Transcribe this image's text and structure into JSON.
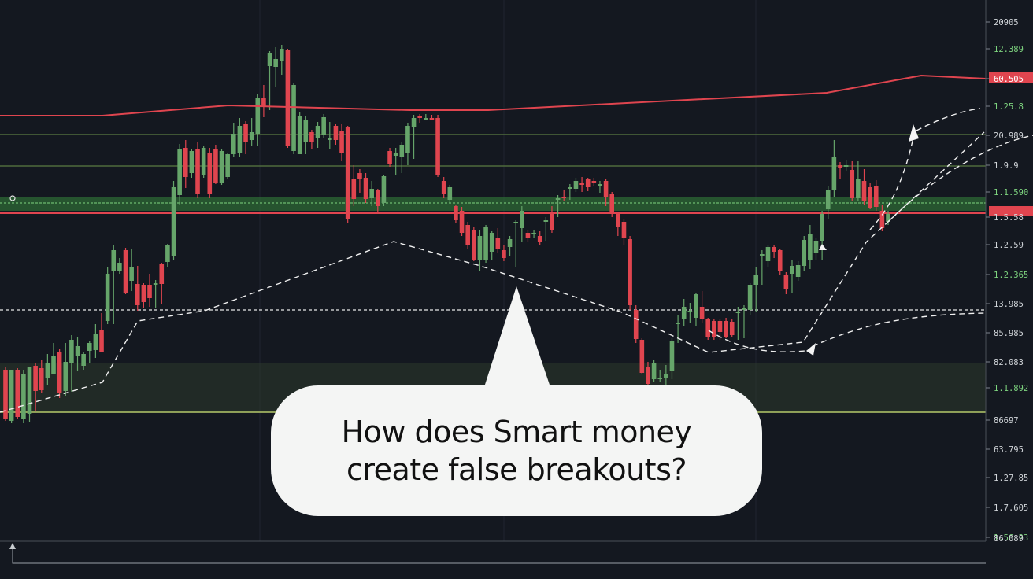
{
  "question": {
    "line1": "How does Smart money",
    "line2": "create false breakouts?"
  },
  "price_axis": {
    "labels": [
      "20905",
      "12.389",
      "60.505",
      "1.25.8",
      "20.989",
      "1.9.9",
      "1.1.590",
      "1.5.58",
      "1.2.59",
      "1.2.365",
      "13.985",
      "85.985",
      "82.083",
      "1.1.892",
      "86697",
      "63.795",
      "1.27.85",
      "1.7.605",
      "1.56.23",
      "1.36.95",
      "86.089"
    ]
  },
  "chart_data": {
    "type": "candlestick",
    "title": "",
    "xlabel": "",
    "ylabel": "",
    "candle_colors": {
      "up": "#66a56a",
      "down": "#e0454f"
    },
    "candles": [
      [
        "d",
        466,
        535,
        470,
        532
      ],
      [
        "u",
        520,
        538,
        470,
        535
      ],
      [
        "d",
        468,
        532,
        470,
        530
      ],
      [
        "u",
        470,
        538,
        475,
        532
      ],
      [
        "u",
        522,
        537,
        466,
        526
      ],
      [
        "d",
        462,
        522,
        465,
        497
      ],
      [
        "d",
        458,
        500,
        468,
        496
      ],
      [
        "u",
        450,
        490,
        462,
        481
      ],
      [
        "u",
        436,
        476,
        452,
        476
      ],
      [
        "d",
        444,
        506,
        447,
        500
      ],
      [
        "u",
        436,
        504,
        460,
        497
      ],
      [
        "u",
        426,
        498,
        432,
        462
      ],
      [
        "u",
        428,
        472,
        440,
        452
      ],
      [
        "u",
        448,
        470,
        450,
        465
      ],
      [
        "u",
        434,
        462,
        436,
        446
      ],
      [
        "u",
        412,
        455,
        425,
        445
      ],
      [
        "d",
        398,
        448,
        420,
        447
      ],
      [
        "u",
        340,
        412,
        348,
        408
      ],
      [
        "u",
        312,
        412,
        318,
        344
      ],
      [
        "u",
        328,
        348,
        334,
        344
      ],
      [
        "d",
        315,
        374,
        318,
        372
      ],
      [
        "u",
        316,
        370,
        340,
        357
      ],
      [
        "d",
        338,
        395,
        361,
        388
      ],
      [
        "d",
        360,
        392,
        362,
        384
      ],
      [
        "d",
        348,
        390,
        362,
        379
      ],
      [
        "u",
        356,
        392,
        360,
        362
      ],
      [
        "d",
        334,
        386,
        336,
        361
      ],
      [
        "u",
        310,
        340,
        312,
        333
      ],
      [
        "u",
        230,
        330,
        238,
        326
      ],
      [
        "u",
        183,
        261,
        190,
        248
      ],
      [
        "d",
        178,
        239,
        188,
        225
      ],
      [
        "u",
        190,
        226,
        192,
        220
      ],
      [
        "d",
        181,
        252,
        190,
        246
      ],
      [
        "u",
        186,
        226,
        188,
        222
      ],
      [
        "d",
        188,
        252,
        194,
        246
      ],
      [
        "d",
        184,
        234,
        190,
        232
      ],
      [
        "u",
        190,
        235,
        192,
        232
      ],
      [
        "u",
        194,
        227,
        196,
        225
      ],
      [
        "u",
        156,
        200,
        170,
        196
      ],
      [
        "u",
        150,
        200,
        160,
        194
      ],
      [
        "d",
        154,
        196,
        158,
        180
      ],
      [
        "u",
        150,
        186,
        168,
        178
      ],
      [
        "u",
        120,
        185,
        124,
        170
      ],
      [
        "d",
        108,
        149,
        124,
        136
      ],
      [
        "u",
        65,
        140,
        68,
        84
      ],
      [
        "u",
        60,
        110,
        75,
        85
      ],
      [
        "u",
        57,
        95,
        62,
        78
      ],
      [
        "d",
        62,
        188,
        64,
        186
      ],
      [
        "u",
        105,
        196,
        108,
        192
      ],
      [
        "u",
        142,
        196,
        148,
        196
      ],
      [
        "u",
        148,
        196,
        152,
        180
      ],
      [
        "d",
        165,
        190,
        168,
        180
      ],
      [
        "u",
        155,
        188,
        160,
        175
      ],
      [
        "u",
        145,
        176,
        149,
        172
      ],
      [
        "u",
        155,
        190,
        176,
        170
      ],
      [
        "d",
        158,
        184,
        160,
        178
      ],
      [
        "d",
        158,
        205,
        166,
        194
      ],
      [
        "d",
        160,
        284,
        162,
        278
      ],
      [
        "d",
        210,
        262,
        228,
        253
      ],
      [
        "d",
        215,
        245,
        220,
        228
      ],
      [
        "d",
        220,
        258,
        226,
        253
      ],
      [
        "u",
        230,
        262,
        240,
        252
      ],
      [
        "d",
        240,
        272,
        242,
        262
      ],
      [
        "u",
        222,
        262,
        224,
        258
      ],
      [
        "d",
        188,
        212,
        192,
        208
      ],
      [
        "u",
        188,
        222,
        194,
        198
      ],
      [
        "u",
        180,
        220,
        184,
        200
      ],
      [
        "u",
        156,
        210,
        160,
        194
      ],
      [
        "u",
        146,
        202,
        150,
        162
      ],
      [
        "d",
        145,
        156,
        148,
        149
      ],
      [
        "u",
        145,
        152,
        150,
        146
      ],
      [
        "d",
        146,
        153,
        150,
        148
      ],
      [
        "d",
        146,
        225,
        150,
        222
      ],
      [
        "d",
        225,
        252,
        230,
        246
      ],
      [
        "u",
        235,
        258,
        238,
        254
      ],
      [
        "d",
        260,
        284,
        262,
        280
      ],
      [
        "d",
        263,
        300,
        268,
        296
      ],
      [
        "d",
        282,
        316,
        286,
        312
      ],
      [
        "d",
        288,
        332,
        292,
        330
      ],
      [
        "u",
        292,
        345,
        300,
        330
      ],
      [
        "u",
        286,
        334,
        288,
        330
      ],
      [
        "u",
        294,
        330,
        296,
        320
      ],
      [
        "d",
        290,
        322,
        302,
        316
      ],
      [
        "d",
        312,
        332,
        318,
        328
      ],
      [
        "u",
        300,
        326,
        304,
        314
      ],
      [
        "u",
        280,
        340,
        282,
        270
      ],
      [
        "u",
        262,
        308,
        268,
        290
      ],
      [
        "d",
        292,
        308,
        296,
        303
      ],
      [
        "u",
        293,
        303,
        296,
        298
      ],
      [
        "d",
        294,
        312,
        300,
        308
      ],
      [
        "u",
        276,
        306,
        280,
        254
      ],
      [
        "d",
        262,
        296,
        270,
        292
      ],
      [
        "u",
        248,
        276,
        252,
        248
      ],
      [
        "d",
        242,
        256,
        250,
        241
      ],
      [
        "u",
        234,
        254,
        238,
        234
      ],
      [
        "u",
        226,
        244,
        230,
        240
      ],
      [
        "d",
        225,
        244,
        232,
        235
      ],
      [
        "d",
        226,
        243,
        228,
        238
      ],
      [
        "d",
        226,
        236,
        230,
        230
      ],
      [
        "u",
        230,
        245,
        234,
        228
      ],
      [
        "d",
        228,
        262,
        230,
        250
      ],
      [
        "d",
        244,
        276,
        246,
        271
      ],
      [
        "d",
        270,
        300,
        272,
        288
      ],
      [
        "d",
        278,
        312,
        282,
        302
      ],
      [
        "d",
        300,
        394,
        304,
        388
      ],
      [
        "d",
        388,
        436,
        394,
        431
      ],
      [
        "d",
        430,
        476,
        432,
        474
      ],
      [
        "d",
        460,
        490,
        466,
        488
      ],
      [
        "u",
        458,
        486,
        462,
        482
      ],
      [
        "u",
        470,
        486,
        480,
        482
      ],
      [
        "u",
        464,
        490,
        476,
        480
      ],
      [
        "u",
        430,
        482,
        434,
        472
      ],
      [
        "u",
        400,
        436,
        410,
        398
      ],
      [
        "u",
        380,
        414,
        390,
        406
      ],
      [
        "u",
        385,
        410,
        395,
        390
      ],
      [
        "u",
        372,
        414,
        374,
        404
      ],
      [
        "d",
        370,
        410,
        390,
        405
      ],
      [
        "d",
        404,
        432,
        406,
        428
      ],
      [
        "d",
        406,
        432,
        408,
        428
      ],
      [
        "d",
        406,
        432,
        408,
        422
      ],
      [
        "d",
        404,
        430,
        408,
        428
      ],
      [
        "d",
        406,
        428,
        409,
        426
      ],
      [
        "u",
        390,
        432,
        396,
        398
      ],
      [
        "u",
        388,
        430,
        392,
        392
      ],
      [
        "u",
        360,
        400,
        362,
        394
      ],
      [
        "u",
        340,
        396,
        350,
        362
      ],
      [
        "u",
        318,
        362,
        323,
        314
      ],
      [
        "u",
        312,
        340,
        314,
        332
      ],
      [
        "d",
        311,
        328,
        314,
        320
      ],
      [
        "d",
        316,
        350,
        318,
        344
      ],
      [
        "d",
        346,
        374,
        350,
        368
      ],
      [
        "u",
        330,
        372,
        338,
        348
      ],
      [
        "u",
        332,
        357,
        337,
        352
      ],
      [
        "u",
        300,
        345,
        305,
        338
      ],
      [
        "u",
        286,
        342,
        298,
        330
      ],
      [
        "u",
        302,
        330,
        306,
        322
      ],
      [
        "u",
        268,
        330,
        272,
        306
      ],
      [
        "u",
        236,
        278,
        242,
        266
      ],
      [
        "u",
        178,
        250,
        200,
        241
      ],
      [
        "d",
        206,
        228,
        210,
        213
      ],
      [
        "u",
        204,
        218,
        210,
        212
      ],
      [
        "d",
        205,
        256,
        216,
        252
      ],
      [
        "u",
        205,
        256,
        228,
        252
      ],
      [
        "d",
        215,
        260,
        230,
        255
      ],
      [
        "d",
        232,
        266,
        238,
        264
      ],
      [
        "d",
        229,
        268,
        236,
        263
      ],
      [
        "d",
        260,
        294,
        268,
        290
      ],
      [
        "u",
        268,
        286,
        272,
        282
      ]
    ],
    "overlays": [
      {
        "name": "",
        "style": "red-line",
        "y": [
          147,
          147,
          134,
          140,
          140,
          118,
          96,
          100
        ]
      },
      {
        "name": "",
        "style": "white-dashed",
        "y": [
          524,
          486,
          408,
          395,
          307,
          338,
          397,
          448,
          435,
          308,
          168
        ]
      }
    ]
  }
}
